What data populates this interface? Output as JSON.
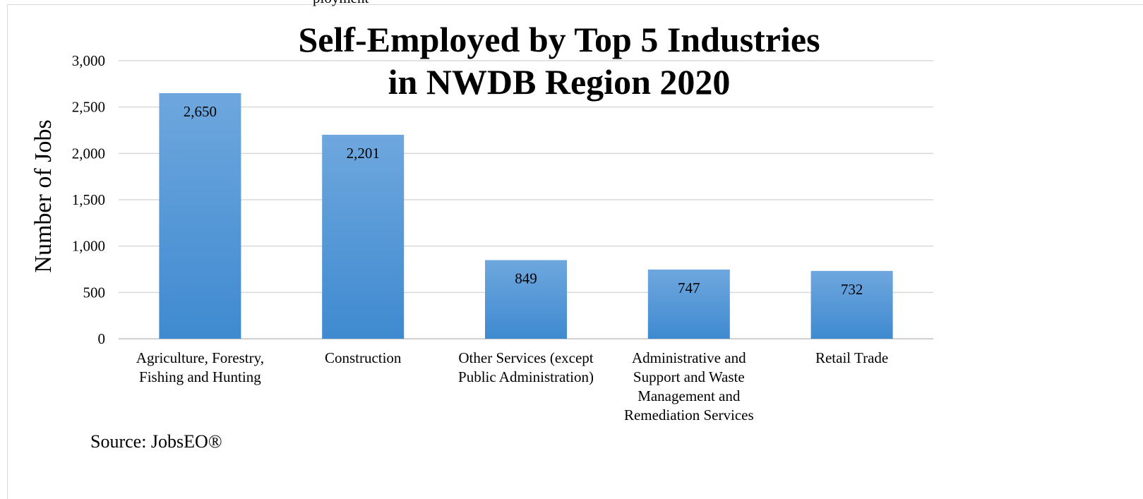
{
  "top_fragment": "ployment",
  "chart_data": {
    "type": "bar",
    "title_lines": [
      "Self-Employed by Top 5 Industries",
      "in NWDB Region 2020"
    ],
    "ylabel": "Number of Jobs",
    "ylim": [
      0,
      3000
    ],
    "yticks": [
      {
        "value": 0,
        "label": "0"
      },
      {
        "value": 500,
        "label": "500"
      },
      {
        "value": 1000,
        "label": "1,000"
      },
      {
        "value": 1500,
        "label": "1,500"
      },
      {
        "value": 2000,
        "label": "2,000"
      },
      {
        "value": 2500,
        "label": "2,500"
      },
      {
        "value": 3000,
        "label": "3,000"
      }
    ],
    "grid": true,
    "categories": [
      [
        "Agriculture, Forestry,",
        "Fishing and Hunting"
      ],
      [
        "Construction"
      ],
      [
        "Other Services (except",
        "Public Administration)"
      ],
      [
        "Administrative and",
        "Support and Waste",
        "Management and",
        "Remediation Services"
      ],
      [
        "Retail Trade"
      ]
    ],
    "values": [
      2650,
      2201,
      849,
      747,
      732
    ],
    "value_labels": [
      "2,650",
      "2,201",
      "849",
      "747",
      "732"
    ],
    "bar_color_top": "#6ea7de",
    "bar_color_bottom": "#3f8ad0"
  },
  "source": "Source: JobsEO®"
}
